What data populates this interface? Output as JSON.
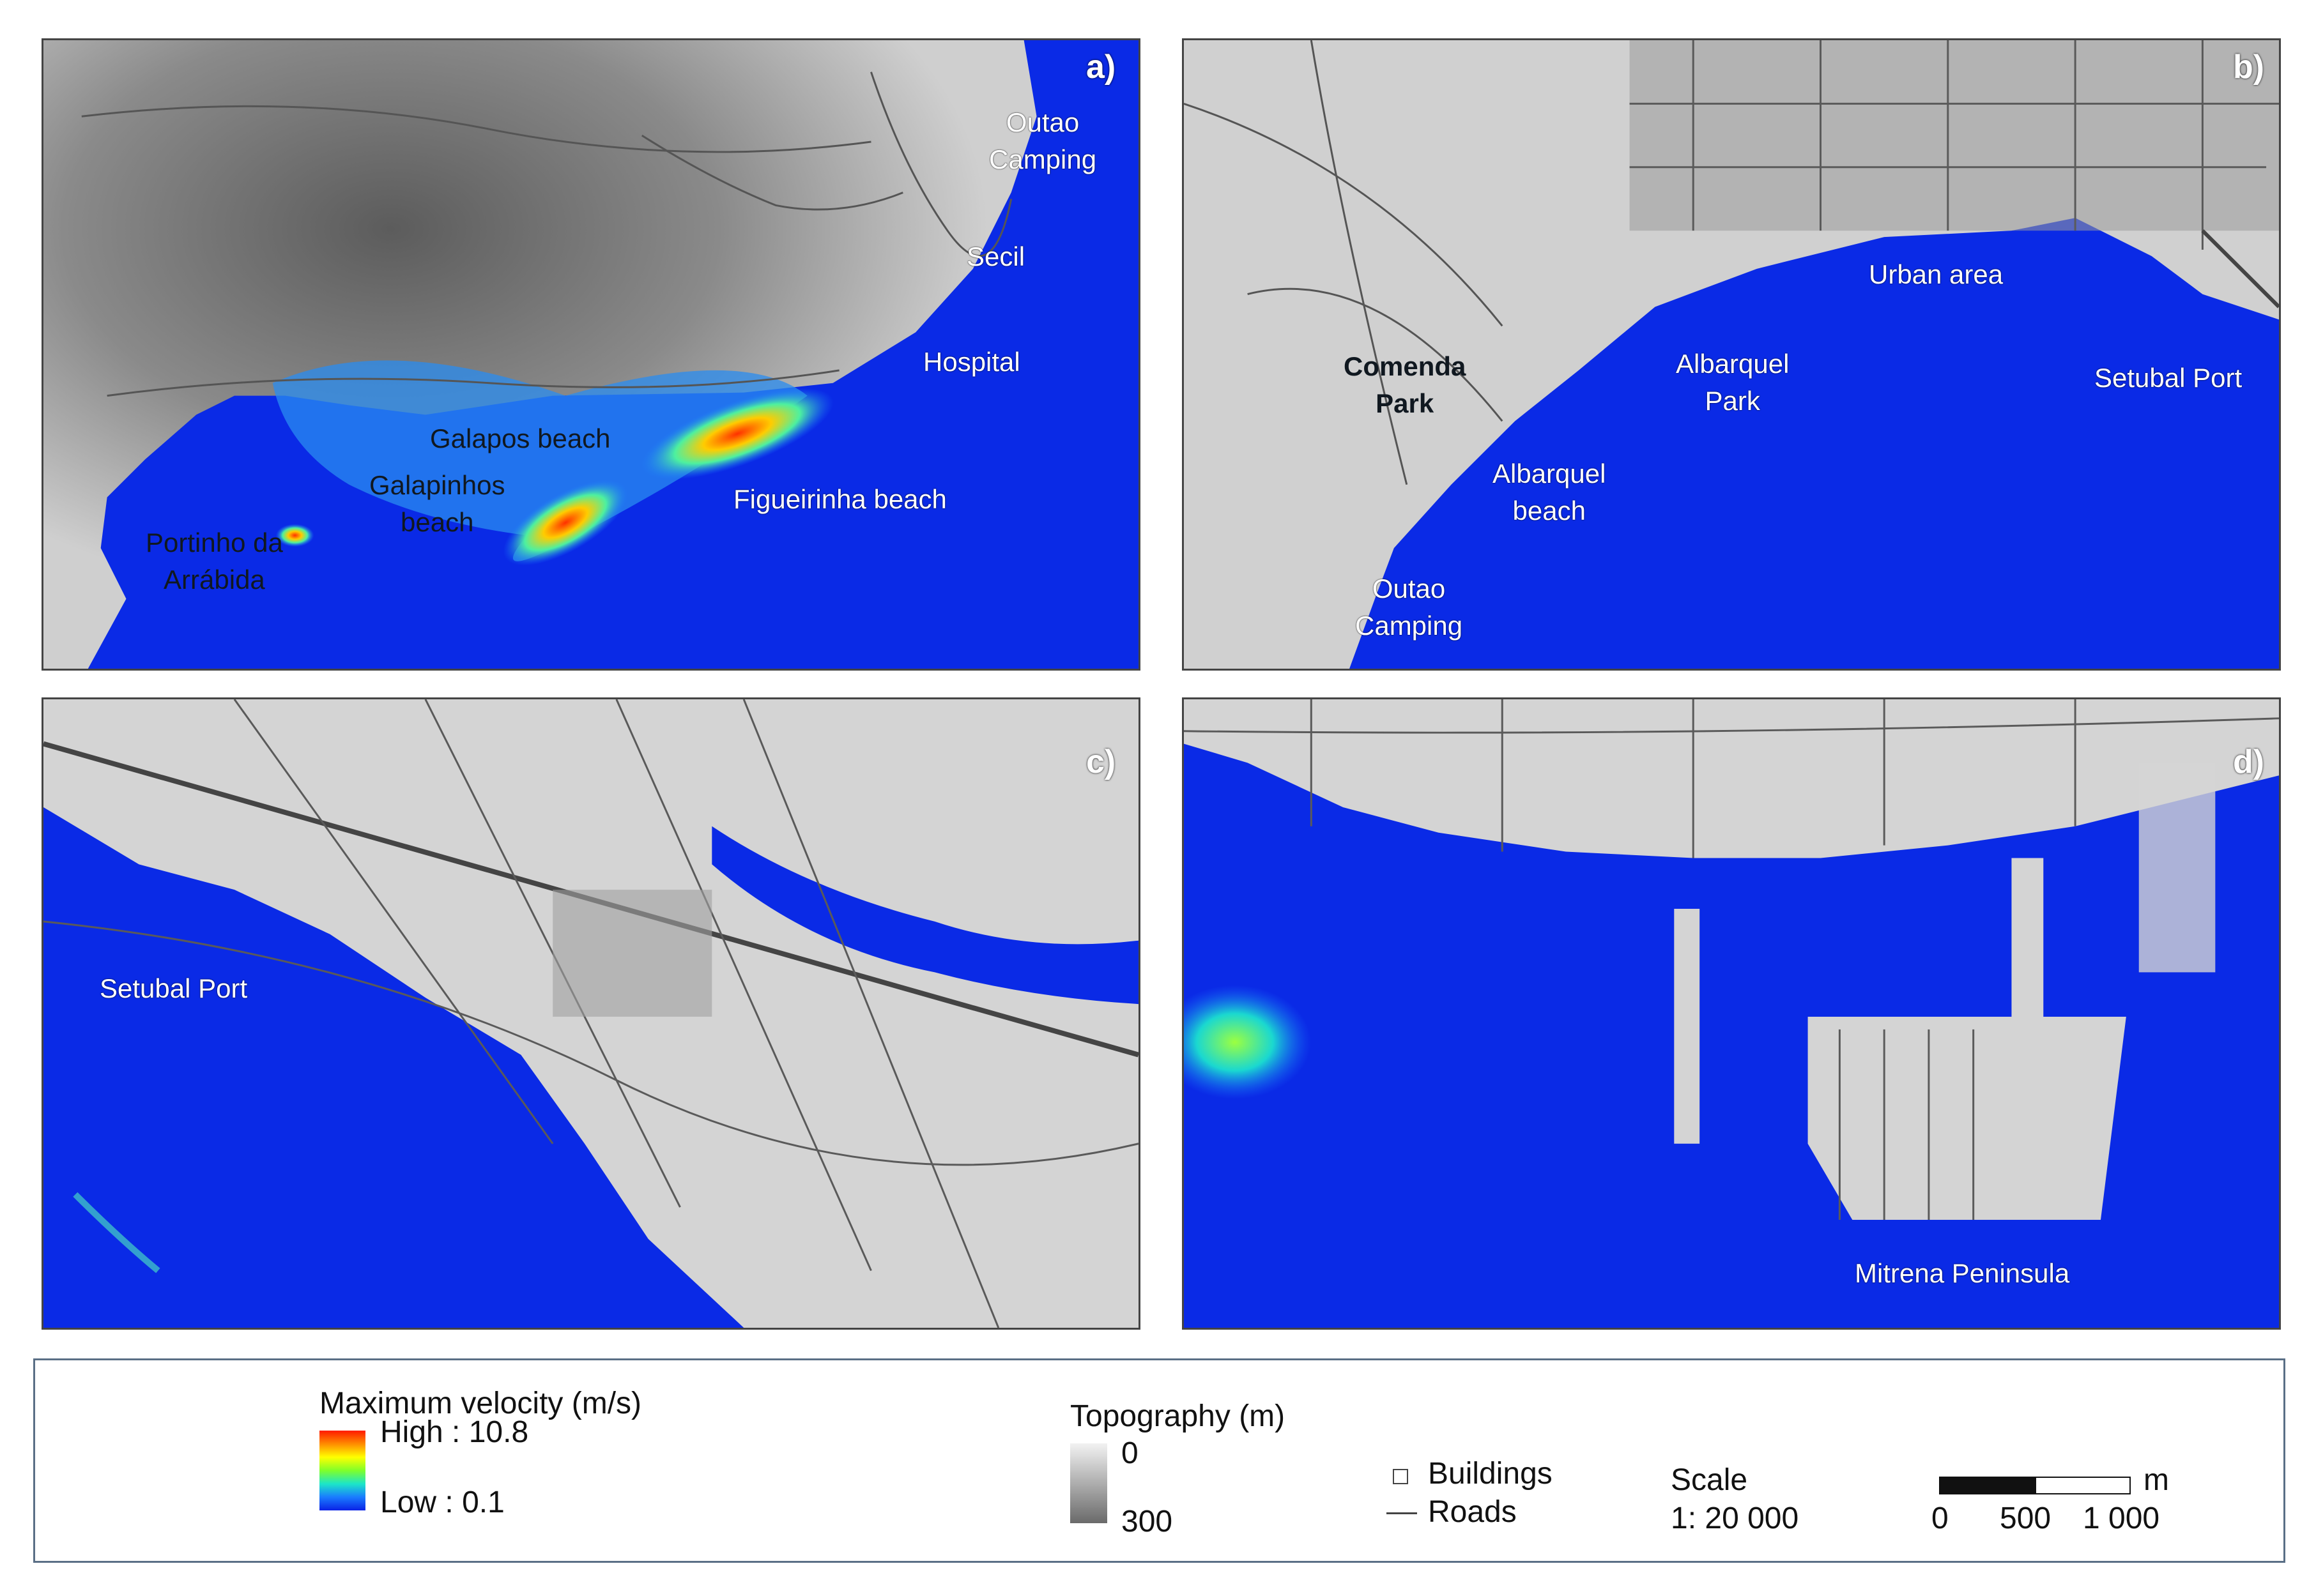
{
  "panels": [
    {
      "letter": "a)",
      "labels": [
        {
          "text": "Outao\nCamping",
          "style": "light"
        },
        {
          "text": "Secil",
          "style": "light"
        },
        {
          "text": "Hospital",
          "style": "light"
        },
        {
          "text": "Galapos beach",
          "style": "dark"
        },
        {
          "text": "Galapinhos\nbeach",
          "style": "dark"
        },
        {
          "text": "Figueirinha beach",
          "style": "light"
        },
        {
          "text": "Portinho da\nArrábida",
          "style": "dark"
        }
      ]
    },
    {
      "letter": "b)",
      "labels": [
        {
          "text": "Urban area",
          "style": "light"
        },
        {
          "text": "Comenda\nPark",
          "style": "dark bold"
        },
        {
          "text": "Albarquel\nPark",
          "style": "light"
        },
        {
          "text": "Setubal Port",
          "style": "light"
        },
        {
          "text": "Albarquel\nbeach",
          "style": "light"
        },
        {
          "text": "Outao\nCamping",
          "style": "light"
        }
      ]
    },
    {
      "letter": "c)",
      "labels": [
        {
          "text": "Setubal Port",
          "style": "light"
        }
      ]
    },
    {
      "letter": "d)",
      "labels": [
        {
          "text": "Mitrena Peninsula",
          "style": "light"
        }
      ]
    }
  ],
  "legend": {
    "velocity_title": "Maximum  velocity (m/s)",
    "velocity_high": "High : 10.8",
    "velocity_low": "Low : 0.1",
    "topo_title": "Topography (m)",
    "topo_min": "0",
    "topo_max": "300",
    "buildings": "Buildings",
    "roads": "Roads",
    "scale_title": "Scale",
    "scale_value": "1: 20 000",
    "scalebar_unit": "m",
    "scalebar_ticks": [
      "0",
      "500",
      "1 000"
    ]
  },
  "colors": {
    "sea": "#0a2ae6",
    "land_light": "#d9d9d9",
    "land_dark": "#6e6e6e",
    "road": "#555555",
    "velocity_high": "#ff1a00",
    "velocity_mid": "#ffff00",
    "velocity_low": "#0a22e6"
  }
}
